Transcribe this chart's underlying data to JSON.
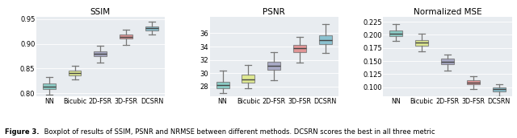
{
  "ssim": {
    "title": "SSIM",
    "categories": [
      "NN",
      "Bicubic",
      "2D-FSR",
      "3D-FSR",
      "DCSRN"
    ],
    "colors": [
      "#74c4bc",
      "#dce87a",
      "#9999bb",
      "#e08080",
      "#74b8c8"
    ],
    "boxes": [
      {
        "q1": 0.808,
        "med": 0.813,
        "q3": 0.82,
        "whislo": 0.797,
        "whishi": 0.833
      },
      {
        "q1": 0.836,
        "med": 0.84,
        "q3": 0.845,
        "whislo": 0.827,
        "whishi": 0.855
      },
      {
        "q1": 0.875,
        "med": 0.88,
        "q3": 0.885,
        "whislo": 0.862,
        "whishi": 0.896
      },
      {
        "q1": 0.91,
        "med": 0.914,
        "q3": 0.918,
        "whislo": 0.898,
        "whishi": 0.929
      },
      {
        "q1": 0.927,
        "med": 0.931,
        "q3": 0.935,
        "whislo": 0.918,
        "whishi": 0.945
      }
    ],
    "ylim": [
      0.793,
      0.955
    ],
    "yticks": [
      0.8,
      0.85,
      0.9,
      0.95
    ]
  },
  "psnr": {
    "title": "PSNR",
    "categories": [
      "NN",
      "Bicubic",
      "2D-FSR",
      "3D-FSR",
      "DCSRN"
    ],
    "colors": [
      "#74c4bc",
      "#dce87a",
      "#9999bb",
      "#e08080",
      "#74b8c8"
    ],
    "boxes": [
      {
        "q1": 27.8,
        "med": 28.25,
        "q3": 28.7,
        "whislo": 27.0,
        "whishi": 30.4
      },
      {
        "q1": 28.6,
        "med": 29.1,
        "q3": 29.75,
        "whislo": 27.8,
        "whishi": 31.2
      },
      {
        "q1": 30.5,
        "med": 31.15,
        "q3": 31.7,
        "whislo": 29.0,
        "whishi": 33.2
      },
      {
        "q1": 33.2,
        "med": 33.8,
        "q3": 34.3,
        "whislo": 31.6,
        "whishi": 35.5
      },
      {
        "q1": 34.4,
        "med": 35.0,
        "q3": 35.7,
        "whislo": 33.1,
        "whishi": 37.4
      }
    ],
    "ylim": [
      26.5,
      38.5
    ],
    "yticks": [
      28,
      30,
      32,
      34,
      36
    ]
  },
  "nmse": {
    "title": "Normalized MSE",
    "categories": [
      "NN",
      "Bicubic",
      "2D-FSR",
      "3D-FSR",
      "DCSRN"
    ],
    "colors": [
      "#74c4bc",
      "#dce87a",
      "#9999bb",
      "#e08080",
      "#74b8c8"
    ],
    "boxes": [
      {
        "q1": 0.198,
        "med": 0.203,
        "q3": 0.208,
        "whislo": 0.188,
        "whishi": 0.22
      },
      {
        "q1": 0.18,
        "med": 0.185,
        "q3": 0.19,
        "whislo": 0.168,
        "whishi": 0.202
      },
      {
        "q1": 0.144,
        "med": 0.149,
        "q3": 0.154,
        "whislo": 0.132,
        "whishi": 0.163
      },
      {
        "q1": 0.105,
        "med": 0.109,
        "q3": 0.113,
        "whislo": 0.097,
        "whishi": 0.121
      },
      {
        "q1": 0.092,
        "med": 0.096,
        "q3": 0.099,
        "whislo": 0.083,
        "whishi": 0.106
      }
    ],
    "ylim": [
      0.082,
      0.235
    ],
    "yticks": [
      0.1,
      0.125,
      0.15,
      0.175,
      0.2,
      0.225
    ]
  },
  "bg_color": "#e8ecf0",
  "fig_bg": "#ffffff",
  "caption_bold": "Figure 3.",
  "caption_normal": " Boxplot of results of SSIM, PSNR and NRMSE between different methods. DCSRN scores the best in all three metric"
}
